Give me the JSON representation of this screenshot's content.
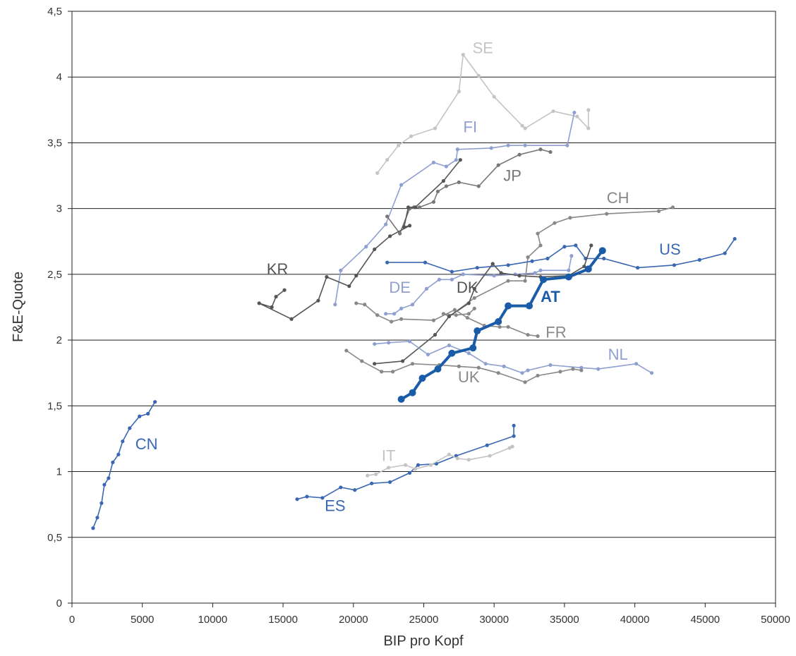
{
  "chart_data": {
    "type": "line",
    "title": "",
    "xlabel": "BIP pro Kopf",
    "ylabel": "F&E-Quote",
    "xlim": [
      0,
      50000
    ],
    "ylim": [
      0,
      4.5
    ],
    "x_ticks": [
      0,
      5000,
      10000,
      15000,
      20000,
      25000,
      30000,
      35000,
      40000,
      45000,
      50000
    ],
    "x_tick_labels": [
      "0",
      "5000",
      "10000",
      "15000",
      "20000",
      "25000",
      "30000",
      "35000",
      "40000",
      "45000",
      "50000"
    ],
    "y_ticks": [
      0,
      0.5,
      1,
      1.5,
      2,
      2.5,
      3,
      3.5,
      4,
      4.5
    ],
    "y_tick_labels": [
      "0",
      "0,5",
      "1",
      "1,5",
      "2",
      "2,5",
      "3",
      "3,5",
      "4",
      "4,5"
    ],
    "grid": "horizontal",
    "legend": "none",
    "series": [
      {
        "name": "SE",
        "color": "#c4c4c4",
        "points": [
          [
            21700,
            3.27
          ],
          [
            22400,
            3.37
          ],
          [
            23200,
            3.48
          ],
          [
            24100,
            3.55
          ],
          [
            25800,
            3.61
          ],
          [
            27500,
            3.89
          ],
          [
            27800,
            4.17
          ],
          [
            28900,
            4.01
          ],
          [
            30000,
            3.85
          ],
          [
            32000,
            3.63
          ],
          [
            32200,
            3.61
          ],
          [
            34200,
            3.74
          ],
          [
            35900,
            3.7
          ],
          [
            36700,
            3.61
          ],
          [
            36700,
            3.75
          ]
        ]
      },
      {
        "name": "FI",
        "color": "#8e9fd0",
        "points": [
          [
            18700,
            2.27
          ],
          [
            19100,
            2.53
          ],
          [
            20900,
            2.71
          ],
          [
            22300,
            2.88
          ],
          [
            23400,
            3.18
          ],
          [
            25700,
            3.35
          ],
          [
            26600,
            3.32
          ],
          [
            27300,
            3.37
          ],
          [
            27400,
            3.45
          ],
          [
            29800,
            3.46
          ],
          [
            31000,
            3.48
          ],
          [
            32200,
            3.48
          ],
          [
            35200,
            3.48
          ],
          [
            35700,
            3.73
          ]
        ]
      },
      {
        "name": "JP",
        "color": "#777777",
        "points": [
          [
            22400,
            2.94
          ],
          [
            23300,
            2.81
          ],
          [
            24000,
            3.0
          ],
          [
            24300,
            3.01
          ],
          [
            24700,
            3.01
          ],
          [
            25700,
            3.05
          ],
          [
            26000,
            3.13
          ],
          [
            26600,
            3.17
          ],
          [
            27500,
            3.2
          ],
          [
            28900,
            3.17
          ],
          [
            30300,
            3.33
          ],
          [
            31800,
            3.41
          ],
          [
            33300,
            3.45
          ],
          [
            34000,
            3.43
          ]
        ]
      },
      {
        "name": "KR",
        "color": "#555555",
        "points": [
          [
            15100,
            2.38
          ],
          [
            14500,
            2.33
          ],
          [
            14200,
            2.25
          ],
          [
            13300,
            2.28
          ],
          [
            15600,
            2.16
          ],
          [
            17500,
            2.3
          ],
          [
            18100,
            2.48
          ],
          [
            19700,
            2.41
          ],
          [
            20200,
            2.49
          ],
          [
            21500,
            2.69
          ],
          [
            22600,
            2.79
          ],
          [
            24000,
            2.87
          ],
          [
            23600,
            2.86
          ],
          [
            23900,
            3.01
          ],
          [
            24400,
            3.01
          ],
          [
            26400,
            3.21
          ],
          [
            27600,
            3.37
          ]
        ]
      },
      {
        "name": "CH",
        "color": "#888888",
        "points": [
          [
            28600,
            2.24
          ],
          [
            28200,
            2.2
          ],
          [
            27300,
            2.19
          ],
          [
            26400,
            2.2
          ],
          [
            26800,
            2.18
          ],
          [
            28600,
            2.32
          ],
          [
            31000,
            2.45
          ],
          [
            32200,
            2.45
          ],
          [
            32400,
            2.63
          ],
          [
            33300,
            2.72
          ],
          [
            33100,
            2.81
          ],
          [
            34300,
            2.89
          ],
          [
            35400,
            2.93
          ],
          [
            38000,
            2.96
          ],
          [
            41700,
            2.98
          ],
          [
            42700,
            3.01
          ]
        ]
      },
      {
        "name": "US",
        "color": "#3a67b3",
        "points": [
          [
            22400,
            2.59
          ],
          [
            25100,
            2.59
          ],
          [
            27000,
            2.52
          ],
          [
            28800,
            2.55
          ],
          [
            31000,
            2.57
          ],
          [
            32700,
            2.6
          ],
          [
            33800,
            2.62
          ],
          [
            35000,
            2.71
          ],
          [
            35800,
            2.72
          ],
          [
            36500,
            2.62
          ],
          [
            37800,
            2.62
          ],
          [
            40200,
            2.55
          ],
          [
            42800,
            2.57
          ],
          [
            44600,
            2.61
          ],
          [
            46400,
            2.66
          ],
          [
            47100,
            2.77
          ]
        ]
      },
      {
        "name": "DE",
        "color": "#8e9fd0",
        "points": [
          [
            22300,
            2.2
          ],
          [
            22900,
            2.2
          ],
          [
            23400,
            2.24
          ],
          [
            24200,
            2.27
          ],
          [
            25200,
            2.39
          ],
          [
            26100,
            2.46
          ],
          [
            27000,
            2.46
          ],
          [
            27800,
            2.5
          ],
          [
            30000,
            2.49
          ],
          [
            31500,
            2.5
          ],
          [
            32900,
            2.51
          ],
          [
            33300,
            2.53
          ],
          [
            35300,
            2.53
          ],
          [
            35500,
            2.64
          ]
        ]
      },
      {
        "name": "DK",
        "color": "#555555",
        "points": [
          [
            21500,
            1.82
          ],
          [
            23500,
            1.84
          ],
          [
            25800,
            2.04
          ],
          [
            26800,
            2.18
          ],
          [
            28200,
            2.28
          ],
          [
            28600,
            2.39
          ],
          [
            29900,
            2.58
          ],
          [
            30500,
            2.51
          ],
          [
            31800,
            2.49
          ],
          [
            33300,
            2.48
          ],
          [
            35300,
            2.49
          ],
          [
            36400,
            2.56
          ],
          [
            36900,
            2.72
          ]
        ]
      },
      {
        "name": "AT",
        "color": "#1a5ca8",
        "points": [
          [
            23400,
            1.55
          ],
          [
            24200,
            1.6
          ],
          [
            24900,
            1.71
          ],
          [
            26000,
            1.78
          ],
          [
            27000,
            1.9
          ],
          [
            28500,
            1.94
          ],
          [
            28800,
            2.07
          ],
          [
            30300,
            2.14
          ],
          [
            31000,
            2.26
          ],
          [
            32500,
            2.26
          ],
          [
            33500,
            2.46
          ],
          [
            35300,
            2.48
          ],
          [
            36700,
            2.54
          ],
          [
            37700,
            2.68
          ]
        ]
      },
      {
        "name": "FR",
        "color": "#888888",
        "points": [
          [
            20200,
            2.28
          ],
          [
            20800,
            2.27
          ],
          [
            21700,
            2.19
          ],
          [
            22700,
            2.14
          ],
          [
            23400,
            2.16
          ],
          [
            25700,
            2.15
          ],
          [
            27200,
            2.23
          ],
          [
            28100,
            2.17
          ],
          [
            29300,
            2.11
          ],
          [
            30400,
            2.1
          ],
          [
            31000,
            2.1
          ],
          [
            32400,
            2.04
          ],
          [
            33100,
            2.03
          ]
        ]
      },
      {
        "name": "NL",
        "color": "#8e9fd0",
        "points": [
          [
            21500,
            1.97
          ],
          [
            22500,
            1.98
          ],
          [
            24000,
            1.99
          ],
          [
            25300,
            1.89
          ],
          [
            26800,
            1.96
          ],
          [
            28200,
            1.9
          ],
          [
            29400,
            1.82
          ],
          [
            30700,
            1.8
          ],
          [
            32000,
            1.75
          ],
          [
            32400,
            1.77
          ],
          [
            34000,
            1.81
          ],
          [
            36200,
            1.79
          ],
          [
            37400,
            1.78
          ],
          [
            40100,
            1.82
          ],
          [
            41200,
            1.75
          ]
        ]
      },
      {
        "name": "UK",
        "color": "#888888",
        "points": [
          [
            19500,
            1.92
          ],
          [
            20600,
            1.84
          ],
          [
            22000,
            1.76
          ],
          [
            22800,
            1.76
          ],
          [
            24200,
            1.82
          ],
          [
            26100,
            1.81
          ],
          [
            27500,
            1.8
          ],
          [
            28900,
            1.79
          ],
          [
            30300,
            1.75
          ],
          [
            32200,
            1.68
          ],
          [
            33100,
            1.73
          ],
          [
            34700,
            1.76
          ],
          [
            35600,
            1.78
          ],
          [
            36200,
            1.77
          ]
        ]
      },
      {
        "name": "CN",
        "color": "#3a67b3",
        "points": [
          [
            1500,
            0.57
          ],
          [
            1800,
            0.65
          ],
          [
            2100,
            0.76
          ],
          [
            2300,
            0.9
          ],
          [
            2600,
            0.95
          ],
          [
            2900,
            1.07
          ],
          [
            3300,
            1.13
          ],
          [
            3600,
            1.23
          ],
          [
            4100,
            1.33
          ],
          [
            4800,
            1.42
          ],
          [
            5400,
            1.44
          ],
          [
            5900,
            1.53
          ]
        ]
      },
      {
        "name": "ES",
        "color": "#3a67b3",
        "points": [
          [
            16000,
            0.79
          ],
          [
            16700,
            0.81
          ],
          [
            17800,
            0.8
          ],
          [
            19100,
            0.88
          ],
          [
            20100,
            0.86
          ],
          [
            21300,
            0.91
          ],
          [
            22600,
            0.92
          ],
          [
            24000,
            0.99
          ],
          [
            24600,
            1.05
          ],
          [
            25900,
            1.06
          ],
          [
            27300,
            1.12
          ],
          [
            29500,
            1.2
          ],
          [
            31400,
            1.27
          ],
          [
            31400,
            1.35
          ]
        ]
      },
      {
        "name": "IT",
        "color": "#c4c4c4",
        "points": [
          [
            21000,
            0.97
          ],
          [
            21600,
            0.98
          ],
          [
            22500,
            1.03
          ],
          [
            23700,
            1.05
          ],
          [
            24400,
            1.02
          ],
          [
            25500,
            1.05
          ],
          [
            26800,
            1.13
          ],
          [
            27400,
            1.1
          ],
          [
            28200,
            1.09
          ],
          [
            29700,
            1.12
          ],
          [
            31100,
            1.18
          ],
          [
            31300,
            1.19
          ]
        ]
      }
    ],
    "annotations": [
      {
        "text": "SE",
        "color": "#c4c4c4",
        "x": 29200,
        "y": 4.18,
        "bold": false
      },
      {
        "text": "FI",
        "color": "#8e9fd0",
        "x": 28300,
        "y": 3.58,
        "bold": false
      },
      {
        "text": "JP",
        "color": "#777777",
        "x": 31300,
        "y": 3.21,
        "bold": false
      },
      {
        "text": "CH",
        "color": "#888888",
        "x": 38800,
        "y": 3.04,
        "bold": false
      },
      {
        "text": "US",
        "color": "#3a67b3",
        "x": 42500,
        "y": 2.65,
        "bold": false
      },
      {
        "text": "KR",
        "color": "#555555",
        "x": 14600,
        "y": 2.5,
        "bold": false
      },
      {
        "text": "DE",
        "color": "#8e9fd0",
        "x": 23300,
        "y": 2.36,
        "bold": false
      },
      {
        "text": "DK",
        "color": "#555555",
        "x": 28100,
        "y": 2.36,
        "bold": false
      },
      {
        "text": "AT",
        "color": "#1a5ca8",
        "x": 34000,
        "y": 2.29,
        "bold": true
      },
      {
        "text": "FR",
        "color": "#888888",
        "x": 34400,
        "y": 2.02,
        "bold": false
      },
      {
        "text": "NL",
        "color": "#8e9fd0",
        "x": 38800,
        "y": 1.85,
        "bold": false
      },
      {
        "text": "UK",
        "color": "#888888",
        "x": 28200,
        "y": 1.68,
        "bold": false
      },
      {
        "text": "CN",
        "color": "#3a67b3",
        "x": 5300,
        "y": 1.17,
        "bold": false
      },
      {
        "text": "IT",
        "color": "#c4c4c4",
        "x": 22500,
        "y": 1.08,
        "bold": false
      },
      {
        "text": "ES",
        "color": "#3a67b3",
        "x": 18700,
        "y": 0.7,
        "bold": false
      }
    ],
    "highlight_series": "AT"
  }
}
